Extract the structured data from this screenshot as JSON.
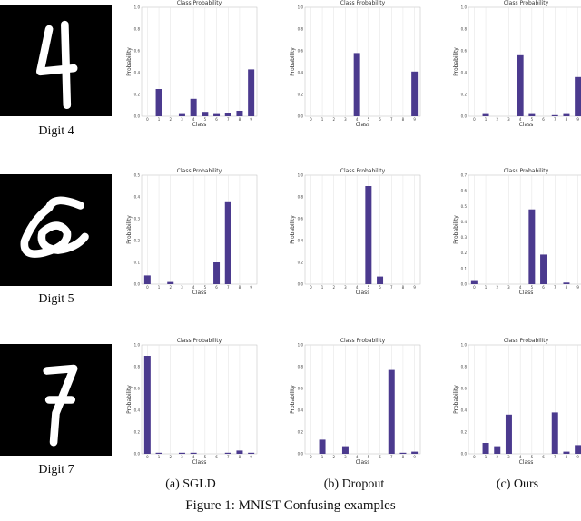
{
  "rows": [
    {
      "label": "Digit 4",
      "digit_name": "digit-4-image"
    },
    {
      "label": "Digit 5",
      "digit_name": "digit-5-image"
    },
    {
      "label": "Digit 7",
      "digit_name": "digit-7-image"
    }
  ],
  "columns": [
    {
      "caption": "(a) SGLD"
    },
    {
      "caption": "(b) Dropout"
    },
    {
      "caption": "(c) Ours"
    }
  ],
  "figure_caption": "Figure 1: MNIST Confusing examples",
  "colors": {
    "bar": "#4b3a8e",
    "grid": "#e2e2e2",
    "axis": "#bbbbbb"
  },
  "chart_data": [
    {
      "type": "bar",
      "title": "Class Probability",
      "xlabel": "Class",
      "ylabel": "Probability",
      "categories": [
        "0",
        "1",
        "2",
        "3",
        "4",
        "5",
        "6",
        "7",
        "8",
        "9"
      ],
      "values": [
        0.0,
        0.25,
        0.0,
        0.02,
        0.16,
        0.04,
        0.02,
        0.03,
        0.05,
        0.43
      ],
      "ylim": [
        0,
        1.0
      ],
      "yticks": [
        "0.0",
        "0.2",
        "0.4",
        "0.6",
        "0.8",
        "1.0"
      ],
      "grid": true
    },
    {
      "type": "bar",
      "title": "Class Probability",
      "xlabel": "Class",
      "ylabel": "Probability",
      "categories": [
        "0",
        "1",
        "2",
        "3",
        "4",
        "5",
        "6",
        "7",
        "8",
        "9"
      ],
      "values": [
        0.0,
        0.0,
        0.0,
        0.0,
        0.58,
        0.0,
        0.0,
        0.0,
        0.0,
        0.41
      ],
      "ylim": [
        0,
        1.0
      ],
      "yticks": [
        "0.0",
        "0.2",
        "0.4",
        "0.6",
        "0.8",
        "1.0"
      ],
      "grid": true
    },
    {
      "type": "bar",
      "title": "Class Probability",
      "xlabel": "Class",
      "ylabel": "Probability",
      "categories": [
        "0",
        "1",
        "2",
        "3",
        "4",
        "5",
        "6",
        "7",
        "8",
        "9"
      ],
      "values": [
        0.0,
        0.02,
        0.0,
        0.0,
        0.56,
        0.02,
        0.0,
        0.01,
        0.02,
        0.36
      ],
      "ylim": [
        0,
        1.0
      ],
      "yticks": [
        "0.0",
        "0.2",
        "0.4",
        "0.6",
        "0.8",
        "1.0"
      ],
      "grid": true
    },
    {
      "type": "bar",
      "title": "Class Probability",
      "xlabel": "Class",
      "ylabel": "Probability",
      "categories": [
        "0",
        "1",
        "2",
        "3",
        "4",
        "5",
        "6",
        "7",
        "8",
        "9"
      ],
      "values": [
        0.04,
        0.0,
        0.01,
        0.0,
        0.0,
        0.0,
        0.1,
        0.38,
        0.0,
        0.0
      ],
      "ylim": [
        0,
        0.5
      ],
      "yticks": [
        "0.0",
        "0.1",
        "0.2",
        "0.3",
        "0.4",
        "0.5"
      ],
      "grid": true
    },
    {
      "type": "bar",
      "title": "Class Probability",
      "xlabel": "Class",
      "ylabel": "Probability",
      "categories": [
        "0",
        "1",
        "2",
        "3",
        "4",
        "5",
        "6",
        "7",
        "8",
        "9"
      ],
      "values": [
        0.0,
        0.0,
        0.0,
        0.0,
        0.0,
        0.9,
        0.07,
        0.0,
        0.0,
        0.0
      ],
      "ylim": [
        0,
        1.0
      ],
      "yticks": [
        "0.0",
        "0.2",
        "0.4",
        "0.6",
        "0.8",
        "1.0"
      ],
      "grid": true
    },
    {
      "type": "bar",
      "title": "Class Probability",
      "xlabel": "Class",
      "ylabel": "Probability",
      "categories": [
        "0",
        "1",
        "2",
        "3",
        "4",
        "5",
        "6",
        "7",
        "8",
        "9"
      ],
      "values": [
        0.02,
        0.0,
        0.0,
        0.0,
        0.0,
        0.48,
        0.19,
        0.0,
        0.01,
        0.0
      ],
      "ylim": [
        0,
        0.7
      ],
      "yticks": [
        "0.0",
        "0.1",
        "0.2",
        "0.3",
        "0.4",
        "0.5",
        "0.6",
        "0.7"
      ],
      "grid": true
    },
    {
      "type": "bar",
      "title": "Class Probability",
      "xlabel": "Class",
      "ylabel": "Probability",
      "categories": [
        "0",
        "1",
        "2",
        "3",
        "4",
        "5",
        "6",
        "7",
        "8",
        "9"
      ],
      "values": [
        0.9,
        0.01,
        0.0,
        0.01,
        0.01,
        0.0,
        0.0,
        0.01,
        0.03,
        0.01
      ],
      "ylim": [
        0,
        1.0
      ],
      "yticks": [
        "0.0",
        "0.2",
        "0.4",
        "0.6",
        "0.8",
        "1.0"
      ],
      "grid": true
    },
    {
      "type": "bar",
      "title": "Class Probability",
      "xlabel": "Class",
      "ylabel": "Probability",
      "categories": [
        "0",
        "1",
        "2",
        "3",
        "4",
        "5",
        "6",
        "7",
        "8",
        "9"
      ],
      "values": [
        0.0,
        0.13,
        0.0,
        0.07,
        0.0,
        0.0,
        0.0,
        0.77,
        0.01,
        0.02
      ],
      "ylim": [
        0,
        1.0
      ],
      "yticks": [
        "0.0",
        "0.2",
        "0.4",
        "0.6",
        "0.8",
        "1.0"
      ],
      "grid": true
    },
    {
      "type": "bar",
      "title": "Class Probability",
      "xlabel": "Class",
      "ylabel": "Probability",
      "categories": [
        "0",
        "1",
        "2",
        "3",
        "4",
        "5",
        "6",
        "7",
        "8",
        "9"
      ],
      "values": [
        0.0,
        0.1,
        0.07,
        0.36,
        0.0,
        0.0,
        0.0,
        0.38,
        0.02,
        0.08
      ],
      "ylim": [
        0,
        1.0
      ],
      "yticks": [
        "0.0",
        "0.2",
        "0.4",
        "0.6",
        "0.8",
        "1.0"
      ],
      "grid": true
    }
  ]
}
